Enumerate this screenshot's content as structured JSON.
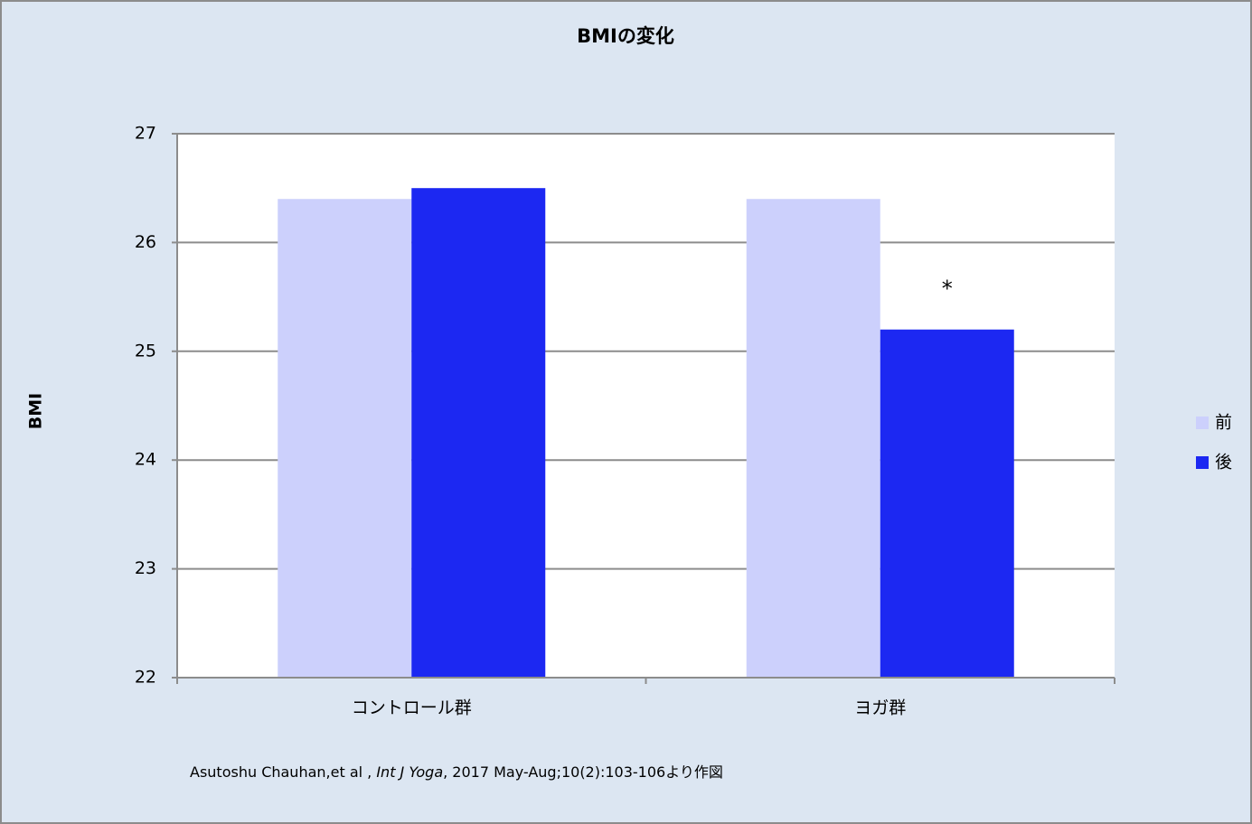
{
  "chart_data": {
    "type": "bar",
    "title": "BMIの変化",
    "y_label": "BMI",
    "categories": [
      "コントロール群",
      "ヨガ群"
    ],
    "series": [
      {
        "name": "前",
        "color": "#ccd0fc",
        "values": [
          26.4,
          26.4
        ]
      },
      {
        "name": "後",
        "color": "#1c28f2",
        "values": [
          26.5,
          25.2
        ]
      }
    ],
    "ylim": [
      22,
      27
    ],
    "yticks": [
      22,
      23,
      24,
      25,
      26,
      27
    ],
    "grid": true,
    "legend": "right",
    "annotation": "*",
    "source": {
      "prefix": "Asutoshu Chauhan,et al , ",
      "journal": "Int J Yoga",
      "suffix": ", 2017 May-Aug;10(2):103-106より作図"
    }
  }
}
